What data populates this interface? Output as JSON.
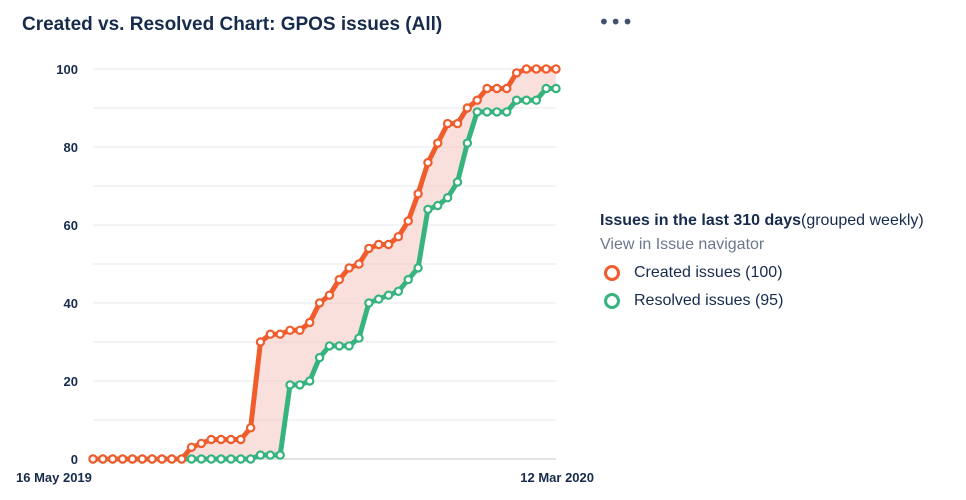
{
  "title": "Created vs. Resolved Chart: GPOS issues (All)",
  "more_menu": {
    "icon": "more-horizontal-icon",
    "label": "•••"
  },
  "legend": {
    "heading_bold": "Issues in the last 310 days",
    "heading_rest": "(grouped weekly)",
    "navigator_link": "View in Issue navigator",
    "items": [
      {
        "label": "Created issues (100)",
        "color": "#f15c2d"
      },
      {
        "label": "Resolved issues (95)",
        "color": "#36b37e"
      }
    ]
  },
  "chart_data": {
    "type": "line",
    "title": "Created vs. Resolved Chart: GPOS issues (All)",
    "x_start_label": "16 May 2019",
    "x_end_label": "12 Mar 2020",
    "xlim": [
      "16 May 2019",
      "12 Mar 2020"
    ],
    "ylim": [
      0,
      100
    ],
    "y_ticks": [
      0,
      20,
      40,
      60,
      80,
      100
    ],
    "grid": true,
    "legend_position": "right",
    "fill_between": {
      "color": "#f4c7c1"
    },
    "series": [
      {
        "name": "Created issues (100)",
        "color": "#f15c2d",
        "values": [
          0,
          0,
          0,
          0,
          0,
          0,
          0,
          0,
          0,
          0,
          3,
          4,
          5,
          5,
          5,
          5,
          8,
          30,
          32,
          32,
          33,
          33,
          35,
          40,
          42,
          46,
          49,
          50,
          54,
          55,
          55,
          57,
          61,
          68,
          76,
          81,
          86,
          86,
          90,
          92,
          95,
          95,
          95,
          99,
          100,
          100,
          100,
          100
        ]
      },
      {
        "name": "Resolved issues (95)",
        "color": "#36b37e",
        "values": [
          0,
          0,
          0,
          0,
          0,
          0,
          0,
          0,
          0,
          0,
          0,
          0,
          0,
          0,
          0,
          0,
          0,
          1,
          1,
          1,
          19,
          19,
          20,
          26,
          29,
          29,
          29,
          31,
          40,
          41,
          42,
          43,
          46,
          49,
          64,
          65,
          67,
          71,
          81,
          89,
          89,
          89,
          89,
          92,
          92,
          92,
          95,
          95
        ]
      }
    ]
  }
}
